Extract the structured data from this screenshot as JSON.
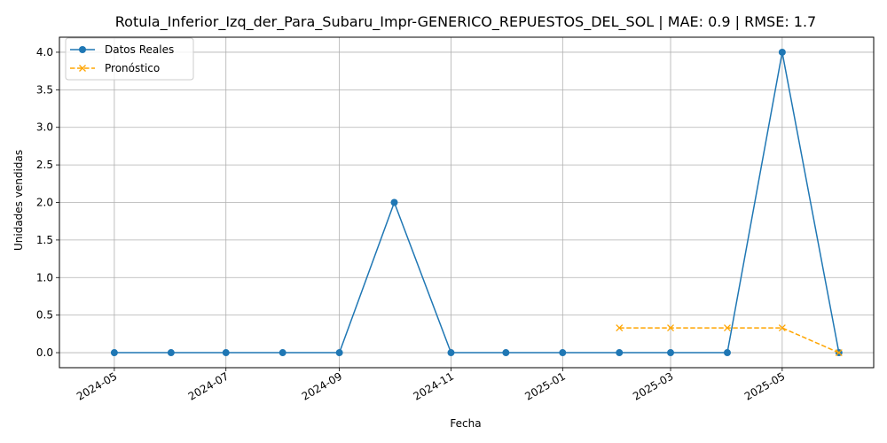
{
  "chart_data": {
    "type": "line",
    "title": "Rotula_Inferior_Izq_der_Para_Subaru_Impr-GENERICO_REPUESTOS_DEL_SOL | MAE: 0.9 | RMSE: 1.7",
    "xlabel": "Fecha",
    "ylabel": "Unidades vendidas",
    "ylim": [
      -0.2,
      4.2
    ],
    "yticks": [
      0.0,
      0.5,
      1.0,
      1.5,
      2.0,
      2.5,
      3.0,
      3.5,
      4.0
    ],
    "ytick_labels": [
      "0.0",
      "0.5",
      "1.0",
      "1.5",
      "2.0",
      "2.5",
      "3.0",
      "3.5",
      "4.0"
    ],
    "xticks": [
      "2024-05-01",
      "2024-07-01",
      "2024-09-01",
      "2024-11-01",
      "2025-01-01",
      "2025-03-01",
      "2025-05-01"
    ],
    "xtick_labels": [
      "2024-05",
      "2024-07",
      "2024-09",
      "2024-11",
      "2025-01",
      "2025-03",
      "2025-05"
    ],
    "xlim": [
      "2024-04-01",
      "2025-06-20"
    ],
    "grid": true,
    "legend_position": "top-left",
    "series": [
      {
        "name": "Datos Reales",
        "color": "#1f77b4",
        "marker": "circle",
        "linestyle": "solid",
        "x": [
          "2024-05-01",
          "2024-06-01",
          "2024-07-01",
          "2024-08-01",
          "2024-09-01",
          "2024-10-01",
          "2024-11-01",
          "2024-12-01",
          "2025-01-01",
          "2025-02-01",
          "2025-03-01",
          "2025-04-01",
          "2025-05-01",
          "2025-06-01"
        ],
        "values": [
          0,
          0,
          0,
          0,
          0,
          2,
          0,
          0,
          0,
          0,
          0,
          0,
          4,
          0
        ]
      },
      {
        "name": "Pronóstico",
        "color": "#ffa500",
        "marker": "x",
        "linestyle": "dashed",
        "x": [
          "2025-02-01",
          "2025-03-01",
          "2025-04-01",
          "2025-05-01",
          "2025-06-01"
        ],
        "values": [
          0.33,
          0.33,
          0.33,
          0.33,
          0
        ]
      }
    ]
  }
}
